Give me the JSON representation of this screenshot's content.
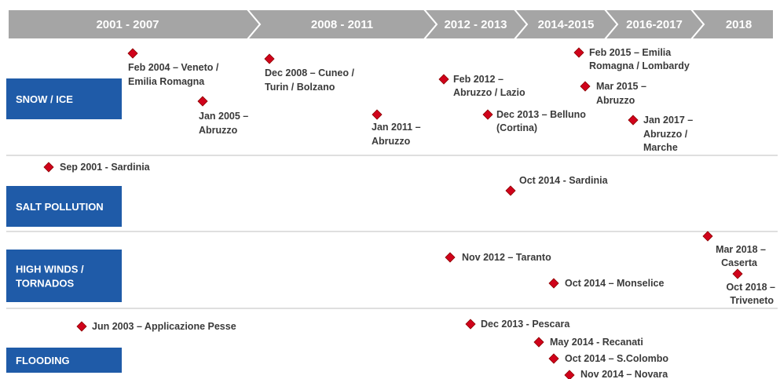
{
  "timeline": {
    "periods": [
      "2001 - 2007",
      "2008 - 2011",
      "2012 - 2013",
      "2014-2015",
      "2016-2017",
      "2018"
    ]
  },
  "categories": [
    {
      "label": [
        "SNOW / ICE"
      ],
      "events": [
        {
          "lines": [
            "Feb 2004 – Veneto /",
            "Emilia Romagna"
          ]
        },
        {
          "lines": [
            "Jan 2005 –",
            "Abruzzo"
          ]
        },
        {
          "lines": [
            "Dec 2008 – Cuneo /",
            "Turin / Bolzano"
          ]
        },
        {
          "lines": [
            "Jan 2011 –",
            "Abruzzo"
          ]
        },
        {
          "lines": [
            "Feb 2012 –",
            "Abruzzo / Lazio"
          ]
        },
        {
          "lines": [
            "Dec 2013 – Belluno",
            "(Cortina)"
          ]
        },
        {
          "lines": [
            "Feb 2015 – Emilia",
            "Romagna / Lombardy"
          ]
        },
        {
          "lines": [
            "Mar 2015 –",
            "Abruzzo"
          ]
        },
        {
          "lines": [
            "Jan 2017 –",
            "Abruzzo /",
            "Marche"
          ]
        }
      ]
    },
    {
      "label": [
        "SALT POLLUTION"
      ],
      "events": [
        {
          "lines": [
            "Sep 2001 - Sardinia"
          ]
        },
        {
          "lines": [
            "Oct 2014 - Sardinia"
          ]
        }
      ]
    },
    {
      "label": [
        "HIGH WINDS /",
        "TORNADOS"
      ],
      "events": [
        {
          "lines": [
            "Nov 2012 – Taranto"
          ]
        },
        {
          "lines": [
            "Oct 2014 – Monselice"
          ]
        },
        {
          "lines": [
            "Mar 2018 –",
            "Caserta"
          ]
        },
        {
          "lines": [
            "Oct 2018 –",
            "Triveneto"
          ]
        }
      ]
    },
    {
      "label": [
        "FLOODING"
      ],
      "events": [
        {
          "lines": [
            "Jun 2003 – Applicazione Pesse"
          ]
        },
        {
          "lines": [
            "Dec 2013 - Pescara"
          ]
        },
        {
          "lines": [
            "May 2014 - Recanati"
          ]
        },
        {
          "lines": [
            "Oct 2014 – S.Colombo"
          ]
        },
        {
          "lines": [
            "Nov 2014 – Novara"
          ]
        }
      ]
    }
  ]
}
